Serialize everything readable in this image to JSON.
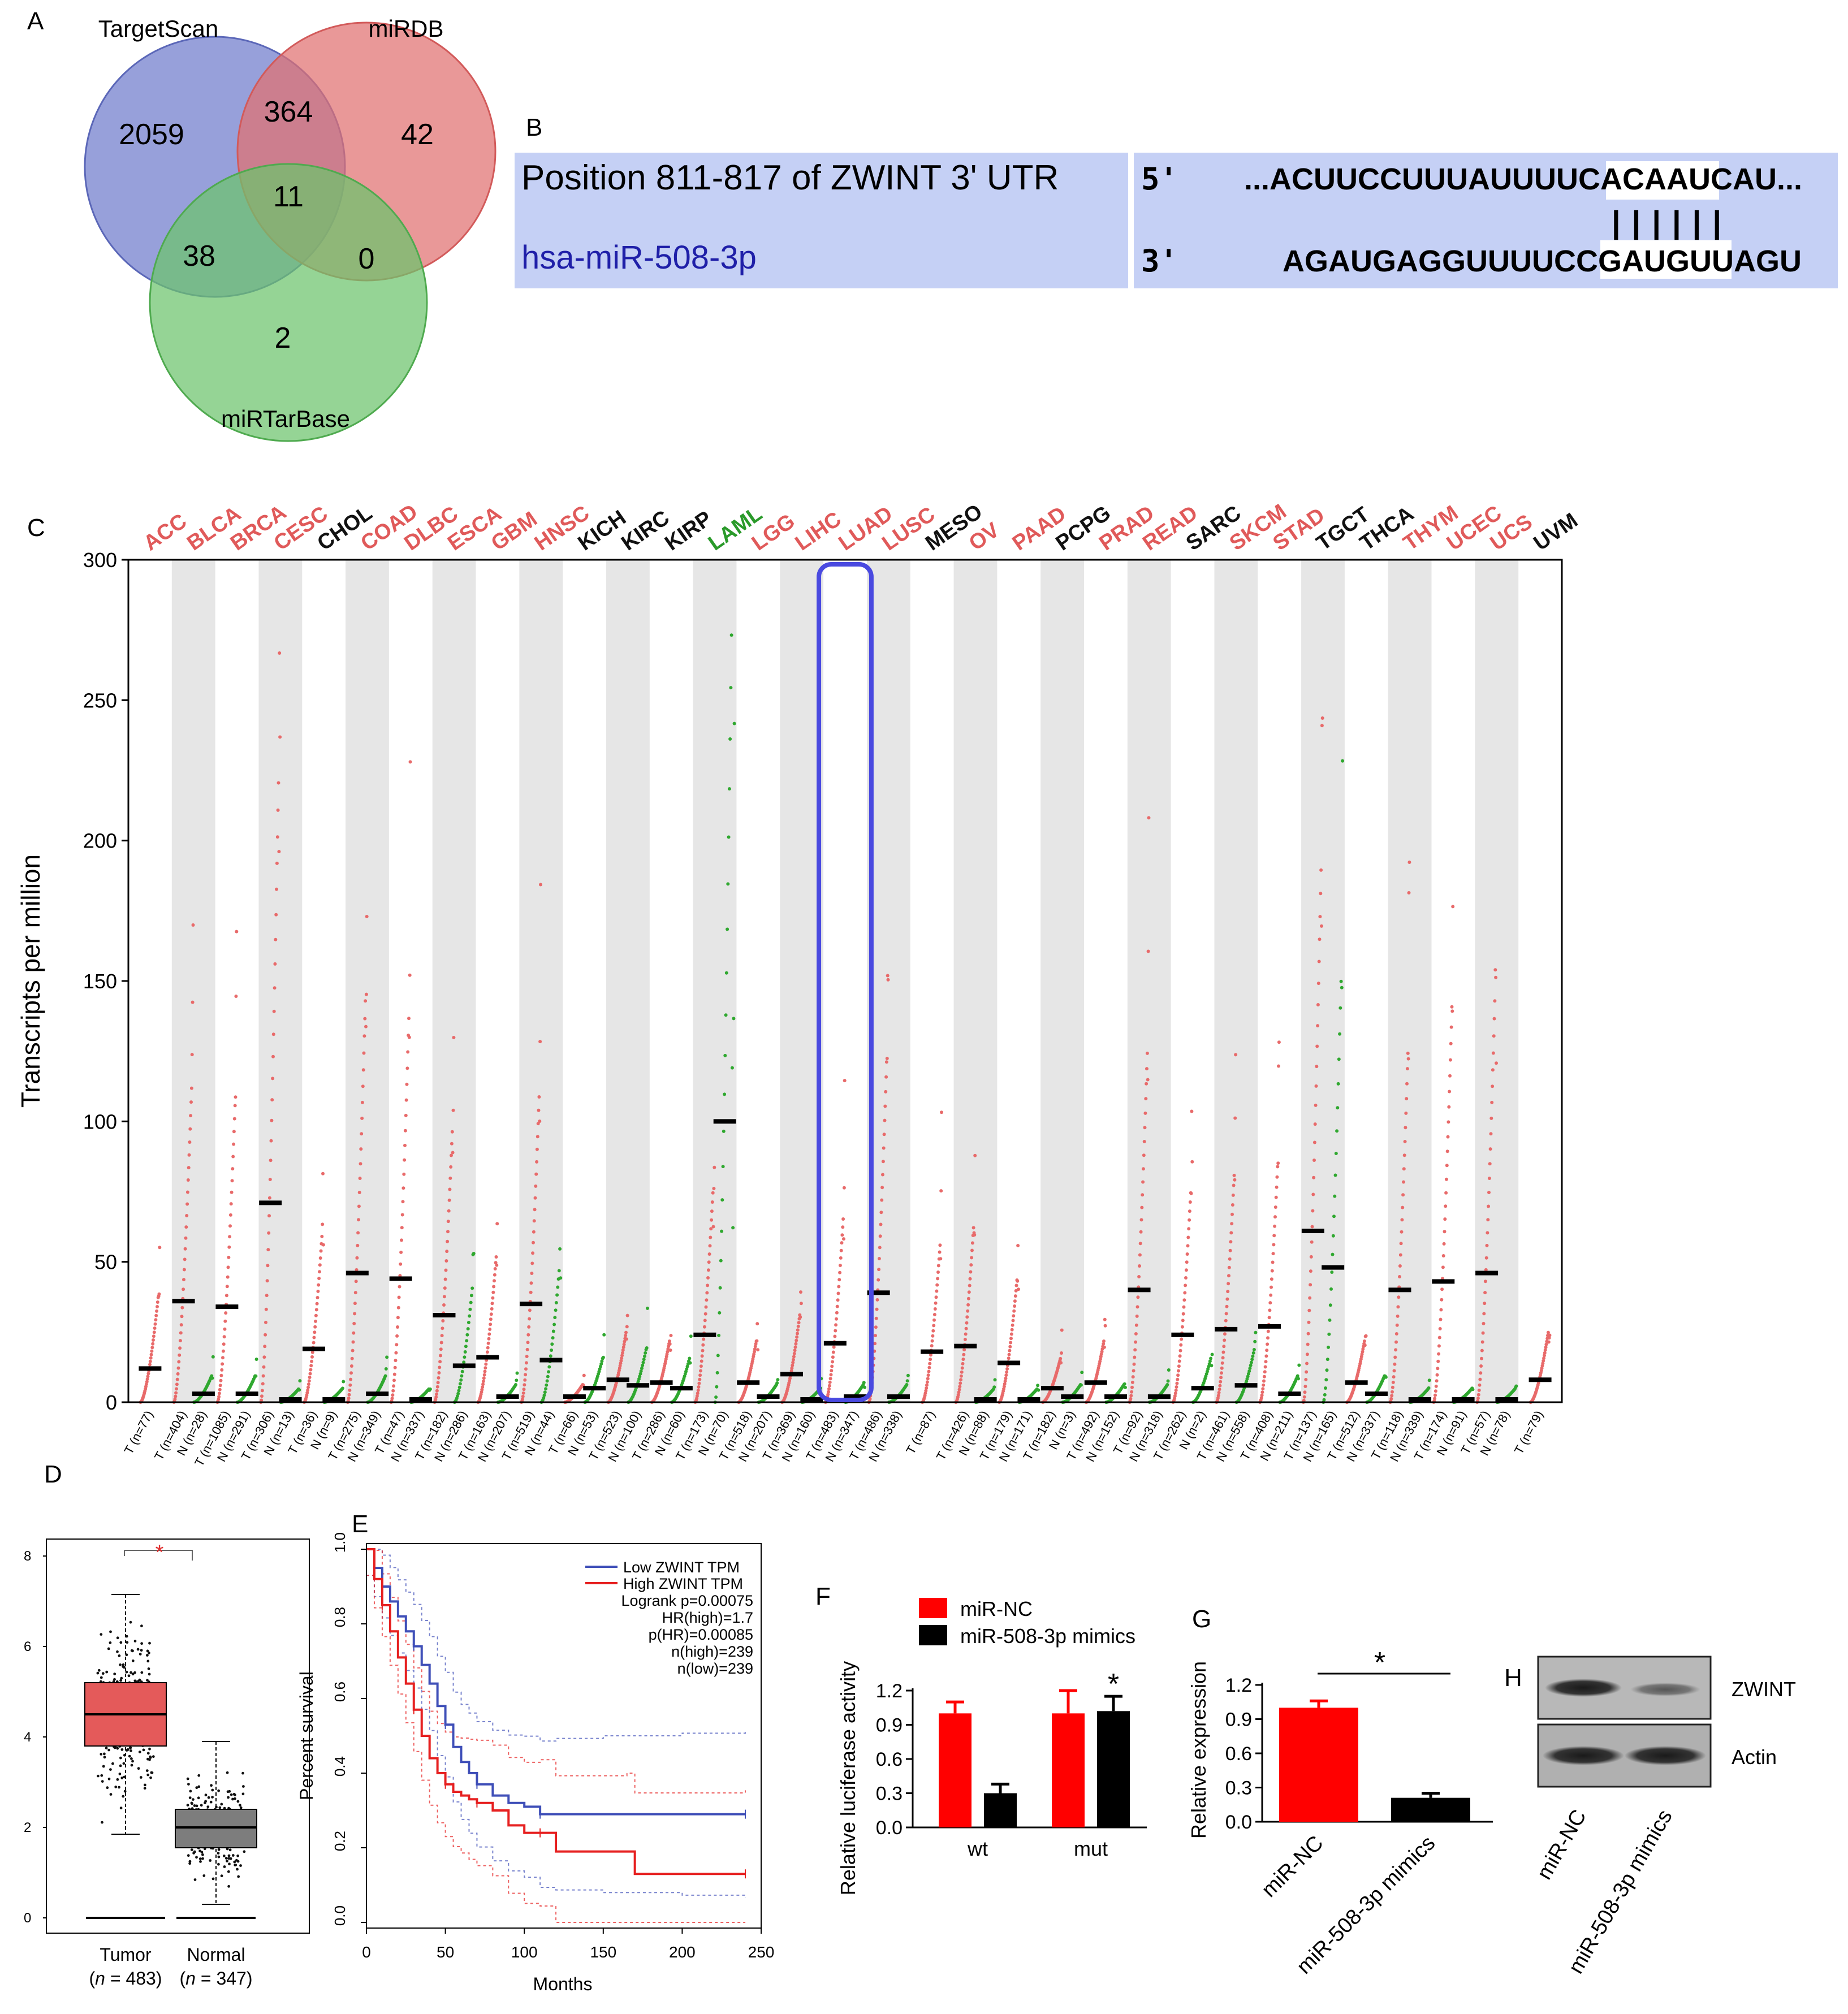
{
  "panels": {
    "A": "A",
    "B": "B",
    "C": "C",
    "D": "D",
    "E": "E",
    "F": "F",
    "G": "G",
    "H": "H"
  },
  "colors": {
    "red": "#ff0000",
    "black": "#000000",
    "blue": "#3f4fb8",
    "tumor": "#e06666",
    "normal": "#2ca02c",
    "highlight": "#4a4ae0",
    "venn_blue": "#6f7ccc",
    "venn_red": "#e07070",
    "venn_green": "#6cc46c",
    "seq_bg": "#c5d0f5"
  },
  "venn": {
    "labels": [
      "TargetScan",
      "miRDB",
      "miRTarBase"
    ],
    "regions": {
      "ts_only": "2059",
      "ts_mirdb": "364",
      "mirdb_only": "42",
      "all": "11",
      "ts_mirtarbase": "38",
      "mirdb_mirtarbase": "0",
      "mirtarbase_only": "2"
    }
  },
  "alignment": {
    "position_label": "Position 811-817 of ZWINT 3' UTR",
    "mirna_label": "hsa-miR-508-3p",
    "end5": "5'",
    "end3": "3'",
    "top_pre": "...ACUUCCUUUAUUUUC",
    "top_seed": "ACAAUCA",
    "top_post": "U...",
    "pairs": "||||||",
    "bottom_pre": "AGAUGAGGUUUUCCGA",
    "bottom_seed": "UGUUAG",
    "bottom_post": "U"
  },
  "chart_data": [
    {
      "panel": "C",
      "type": "scatter",
      "title": "",
      "ylabel": "Transcripts per million",
      "ylim": [
        0,
        300
      ],
      "yticks": [
        "0",
        "50",
        "100",
        "150",
        "200",
        "250",
        "300"
      ],
      "highlighted_cancer": "LUAD",
      "cancers": [
        {
          "name": "ACC",
          "color": "red",
          "T": 12,
          "N": null,
          "Tn": "T (n=77)",
          "Nn": null
        },
        {
          "name": "BLCA",
          "color": "red",
          "T": 36,
          "N": 3,
          "Tn": "T (n=404)",
          "Nn": "N (n=28)"
        },
        {
          "name": "BRCA",
          "color": "red",
          "T": 34,
          "N": 3,
          "Tn": "T (n=1085)",
          "Nn": "N (n=291)"
        },
        {
          "name": "CESC",
          "color": "red",
          "T": 71,
          "N": 1,
          "Tn": "T (n=306)",
          "Nn": "N (n=13)"
        },
        {
          "name": "CHOL",
          "color": "black",
          "T": 19,
          "N": 1,
          "Tn": "T (n=36)",
          "Nn": "N (n=9)"
        },
        {
          "name": "COAD",
          "color": "red",
          "T": 46,
          "N": 3,
          "Tn": "T (n=275)",
          "Nn": "N (n=349)"
        },
        {
          "name": "DLBC",
          "color": "red",
          "T": 44,
          "N": 1,
          "Tn": "T (n=47)",
          "Nn": "N (n=337)"
        },
        {
          "name": "ESCA",
          "color": "red",
          "T": 31,
          "N": 13,
          "Tn": "T (n=182)",
          "Nn": "N (n=286)"
        },
        {
          "name": "GBM",
          "color": "red",
          "T": 16,
          "N": 2,
          "Tn": "T (n=163)",
          "Nn": "N (n=207)"
        },
        {
          "name": "HNSC",
          "color": "red",
          "T": 35,
          "N": 15,
          "Tn": "T (n=519)",
          "Nn": "N (n=44)"
        },
        {
          "name": "KICH",
          "color": "black",
          "T": 2,
          "N": 5,
          "Tn": "T (n=66)",
          "Nn": "N (n=53)"
        },
        {
          "name": "KIRC",
          "color": "black",
          "T": 8,
          "N": 6,
          "Tn": "T (n=523)",
          "Nn": "N (n=100)"
        },
        {
          "name": "KIRP",
          "color": "black",
          "T": 7,
          "N": 5,
          "Tn": "T (n=286)",
          "Nn": "N (n=60)"
        },
        {
          "name": "LAML",
          "color": "green",
          "T": 24,
          "N": 100,
          "Tn": "T (n=173)",
          "Nn": "N (n=70)"
        },
        {
          "name": "LGG",
          "color": "red",
          "T": 7,
          "N": 2,
          "Tn": "T (n=518)",
          "Nn": "N (n=207)"
        },
        {
          "name": "LIHC",
          "color": "red",
          "T": 10,
          "N": 1,
          "Tn": "T (n=369)",
          "Nn": "N (n=160)"
        },
        {
          "name": "LUAD",
          "color": "red",
          "T": 21,
          "N": 2,
          "Tn": "T (n=483)",
          "Nn": "N (n=347)"
        },
        {
          "name": "LUSC",
          "color": "red",
          "T": 39,
          "N": 2,
          "Tn": "T (n=486)",
          "Nn": "N (n=338)"
        },
        {
          "name": "MESO",
          "color": "black",
          "T": 18,
          "N": null,
          "Tn": "T (n=87)",
          "Nn": null
        },
        {
          "name": "OV",
          "color": "red",
          "T": 20,
          "N": 1,
          "Tn": "T (n=426)",
          "Nn": "N (n=88)"
        },
        {
          "name": "PAAD",
          "color": "red",
          "T": 14,
          "N": 1,
          "Tn": "T (n=179)",
          "Nn": "N (n=171)"
        },
        {
          "name": "PCPG",
          "color": "black",
          "T": 5,
          "N": 2,
          "Tn": "T (n=182)",
          "Nn": "N (n=3)"
        },
        {
          "name": "PRAD",
          "color": "red",
          "T": 7,
          "N": 2,
          "Tn": "T (n=492)",
          "Nn": "N (n=152)"
        },
        {
          "name": "READ",
          "color": "red",
          "T": 40,
          "N": 2,
          "Tn": "T (n=92)",
          "Nn": "N (n=318)"
        },
        {
          "name": "SARC",
          "color": "black",
          "T": 24,
          "N": 5,
          "Tn": "T (n=262)",
          "Nn": "N (n=2)"
        },
        {
          "name": "SKCM",
          "color": "red",
          "T": 26,
          "N": 6,
          "Tn": "T (n=461)",
          "Nn": "N (n=558)"
        },
        {
          "name": "STAD",
          "color": "red",
          "T": 27,
          "N": 3,
          "Tn": "T (n=408)",
          "Nn": "N (n=211)"
        },
        {
          "name": "TGCT",
          "color": "black",
          "T": 61,
          "N": 48,
          "Tn": "T (n=137)",
          "Nn": "N (n=165)"
        },
        {
          "name": "THCA",
          "color": "black",
          "T": 7,
          "N": 3,
          "Tn": "T (n=512)",
          "Nn": "N (n=337)"
        },
        {
          "name": "THYM",
          "color": "red",
          "T": 40,
          "N": 1,
          "Tn": "T (n=118)",
          "Nn": "N (n=339)"
        },
        {
          "name": "UCEC",
          "color": "red",
          "T": 43,
          "N": 1,
          "Tn": "T (n=174)",
          "Nn": "N (n=91)"
        },
        {
          "name": "UCS",
          "color": "red",
          "T": 46,
          "N": 1,
          "Tn": "T (n=57)",
          "Nn": "N (n=78)"
        },
        {
          "name": "UVM",
          "color": "black",
          "T": 8,
          "N": null,
          "Tn": "T (n=79)",
          "Nn": null
        }
      ]
    },
    {
      "panel": "D",
      "type": "box",
      "categories": [
        "Tumor",
        "Normal"
      ],
      "n_labels": [
        "(n = 483)",
        "(n = 347)"
      ],
      "n_prefix": "(",
      "n_italic": "n",
      "n_values": [
        " = 483)",
        " = 347)"
      ],
      "ylim": [
        0,
        8
      ],
      "yticks": [
        "0",
        "2",
        "4",
        "6",
        "8"
      ],
      "boxes": [
        {
          "name": "Tumor",
          "q1": 3.8,
          "median": 4.5,
          "q3": 5.2,
          "whisker_low": 1.85,
          "whisker_high": 7.15
        },
        {
          "name": "Normal",
          "q1": 1.55,
          "median": 2.0,
          "q3": 2.4,
          "whisker_low": 0.3,
          "whisker_high": 3.9
        }
      ],
      "significance": "*"
    },
    {
      "panel": "E",
      "type": "line",
      "xlabel": "Months",
      "ylabel": "Percent survival",
      "xlim": [
        0,
        250
      ],
      "ylim": [
        0,
        1.0
      ],
      "xticks": [
        "0",
        "50",
        "100",
        "150",
        "200",
        "250"
      ],
      "yticks": [
        "0.0",
        "0.2",
        "0.4",
        "0.6",
        "0.8",
        "1.0"
      ],
      "legend": [
        "Low ZWINT TPM",
        "High ZWINT TPM"
      ],
      "stats": [
        "Logrank p=0.00075",
        "HR(high)=1.7",
        "p(HR)=0.00085",
        "n(high)=239",
        "n(low)=239"
      ],
      "series": [
        {
          "name": "Low ZWINT TPM",
          "color": "#3f4fb8",
          "x": [
            0,
            5,
            10,
            15,
            20,
            25,
            30,
            35,
            40,
            45,
            50,
            55,
            60,
            65,
            70,
            80,
            90,
            100,
            110,
            120,
            150,
            200,
            240
          ],
          "y": [
            1.0,
            0.95,
            0.9,
            0.86,
            0.82,
            0.78,
            0.74,
            0.69,
            0.64,
            0.58,
            0.53,
            0.47,
            0.43,
            0.4,
            0.37,
            0.34,
            0.32,
            0.31,
            0.29,
            0.29,
            0.29,
            0.29,
            0.29
          ]
        },
        {
          "name": "High ZWINT TPM",
          "color": "#e62020",
          "x": [
            0,
            5,
            10,
            15,
            20,
            25,
            30,
            35,
            40,
            45,
            50,
            55,
            60,
            65,
            70,
            80,
            90,
            100,
            110,
            120,
            165,
            170,
            240
          ],
          "y": [
            1.0,
            0.92,
            0.85,
            0.78,
            0.71,
            0.64,
            0.57,
            0.5,
            0.44,
            0.4,
            0.37,
            0.35,
            0.34,
            0.33,
            0.32,
            0.3,
            0.26,
            0.24,
            0.24,
            0.19,
            0.19,
            0.13,
            0.13
          ]
        }
      ]
    },
    {
      "panel": "F",
      "type": "bar",
      "categories": [
        "wt",
        "mut"
      ],
      "ylabel": "Relative luciferase activity",
      "ylim": [
        0,
        1.2
      ],
      "yticks": [
        "0.0",
        "0.3",
        "0.6",
        "0.9",
        "1.2"
      ],
      "series": [
        {
          "name": "miR-NC",
          "color": "#ff0000",
          "values": [
            1.0,
            1.0
          ],
          "errors": [
            0.1,
            0.2
          ]
        },
        {
          "name": "miR-508-3p mimics",
          "color": "#000000",
          "values": [
            0.3,
            1.02
          ],
          "errors": [
            0.08,
            0.13
          ]
        }
      ],
      "annotation": "*"
    },
    {
      "panel": "G",
      "type": "bar",
      "categories": [
        "miR-NC",
        "miR-508-3p mimics"
      ],
      "ylabel": "Relative expression",
      "ylim": [
        0,
        1.2
      ],
      "yticks": [
        "0.0",
        "0.3",
        "0.6",
        "0.9",
        "1.2"
      ],
      "values": [
        1.0,
        0.21
      ],
      "errors": [
        0.06,
        0.04
      ],
      "colors": [
        "#ff0000",
        "#000000"
      ],
      "annotation": "*"
    }
  ],
  "western_blot": {
    "bands": [
      "ZWINT",
      "Actin"
    ],
    "lanes": [
      "miR-NC",
      "miR-508-3p mimics"
    ]
  }
}
